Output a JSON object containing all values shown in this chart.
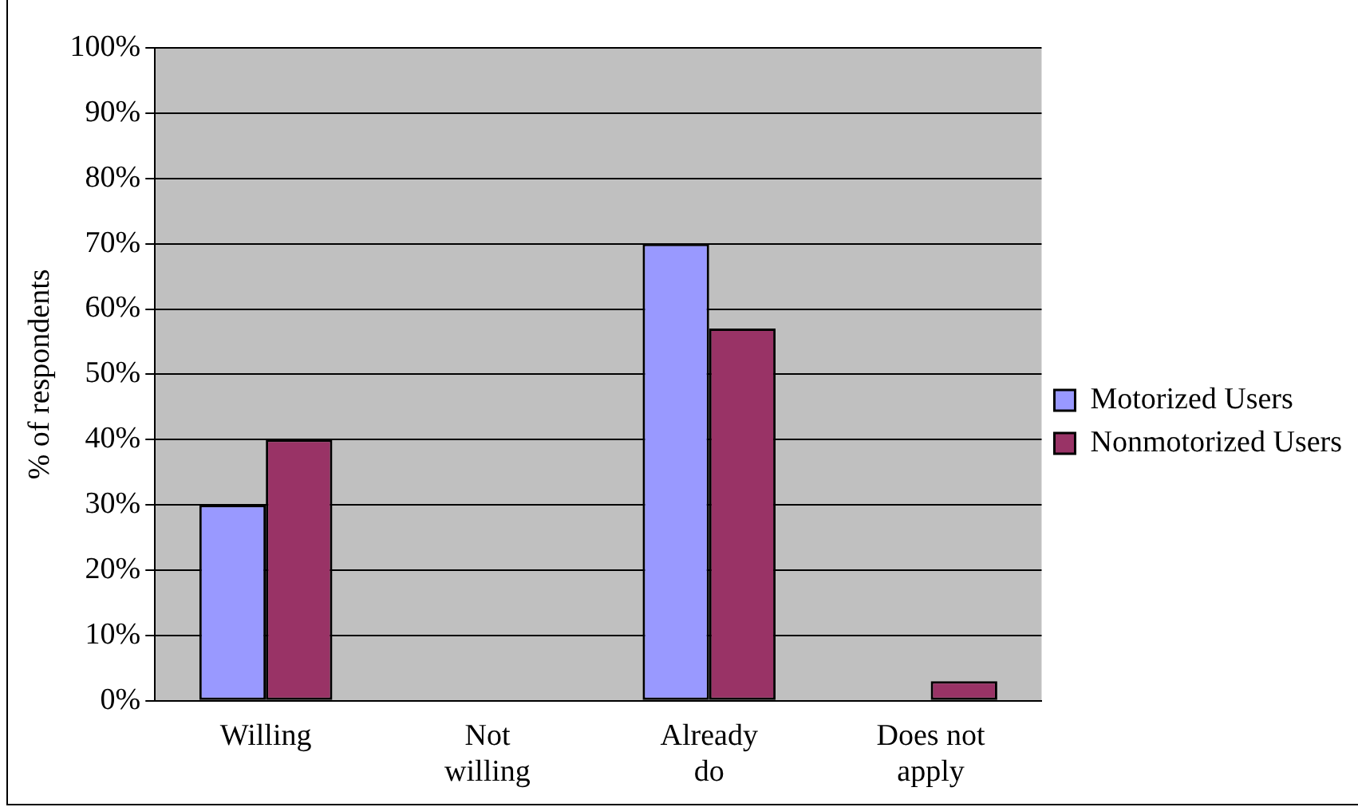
{
  "chart_data": {
    "type": "bar",
    "ylabel": "% of respondents",
    "categories": [
      "Willing",
      "Not willing",
      "Already do",
      "Does not apply"
    ],
    "series": [
      {
        "name": "Motorized Users",
        "color": "#9999ff",
        "values": [
          30,
          0,
          70,
          0
        ]
      },
      {
        "name": "Nonmotorized Users",
        "color": "#993366",
        "values": [
          40,
          0,
          57,
          3
        ]
      }
    ],
    "ylim": [
      0,
      100
    ],
    "yticks": [
      {
        "value": 0,
        "label": "0%"
      },
      {
        "value": 10,
        "label": "10%"
      },
      {
        "value": 20,
        "label": "20%"
      },
      {
        "value": 30,
        "label": "30%"
      },
      {
        "value": 40,
        "label": "40%"
      },
      {
        "value": 50,
        "label": "50%"
      },
      {
        "value": 60,
        "label": "60%"
      },
      {
        "value": 70,
        "label": "70%"
      },
      {
        "value": 80,
        "label": "80%"
      },
      {
        "value": 90,
        "label": "90%"
      },
      {
        "value": 100,
        "label": "100%"
      }
    ],
    "grid": "y",
    "legend": "right"
  }
}
